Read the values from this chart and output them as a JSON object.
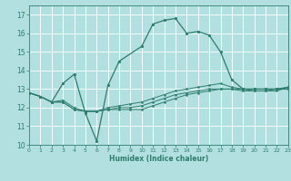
{
  "xlabel": "Humidex (Indice chaleur)",
  "background_color": "#b2dfdf",
  "grid_color": "#ffffff",
  "line_color": "#2e7d6e",
  "xlim": [
    0,
    23
  ],
  "ylim": [
    10,
    17.5
  ],
  "yticks": [
    10,
    11,
    12,
    13,
    14,
    15,
    16,
    17
  ],
  "xticks": [
    0,
    1,
    2,
    3,
    4,
    5,
    6,
    7,
    8,
    9,
    10,
    11,
    12,
    13,
    14,
    15,
    16,
    17,
    18,
    19,
    20,
    21,
    22,
    23
  ],
  "series": [
    {
      "x": [
        0,
        1,
        2,
        3,
        4,
        5,
        6,
        7,
        8,
        10,
        11,
        12,
        13,
        14,
        15,
        16,
        17,
        18,
        19,
        20,
        21,
        22,
        23
      ],
      "y": [
        12.8,
        12.6,
        12.3,
        13.3,
        13.8,
        11.7,
        10.2,
        13.2,
        14.5,
        15.3,
        16.5,
        16.7,
        16.8,
        16.0,
        16.1,
        15.9,
        15.0,
        13.5,
        13.0,
        13.0,
        13.0,
        13.0,
        13.0
      ]
    },
    {
      "x": [
        0,
        1,
        2,
        3,
        4,
        5,
        6,
        7,
        8,
        9,
        10,
        11,
        12,
        13,
        14,
        15,
        16,
        17,
        18,
        19,
        20,
        21,
        22,
        23
      ],
      "y": [
        12.8,
        12.6,
        12.3,
        12.4,
        12.0,
        11.8,
        11.8,
        12.0,
        12.1,
        12.2,
        12.3,
        12.5,
        12.7,
        12.9,
        13.0,
        13.1,
        13.2,
        13.3,
        13.1,
        13.0,
        13.0,
        13.0,
        13.0,
        13.1
      ]
    },
    {
      "x": [
        0,
        1,
        2,
        3,
        4,
        5,
        6,
        7,
        8,
        9,
        10,
        11,
        12,
        13,
        14,
        15,
        16,
        17,
        18,
        19,
        20,
        21,
        22,
        23
      ],
      "y": [
        12.8,
        12.6,
        12.3,
        12.3,
        11.9,
        11.8,
        11.8,
        11.9,
        12.0,
        12.0,
        12.1,
        12.3,
        12.5,
        12.7,
        12.8,
        12.9,
        13.0,
        13.0,
        13.0,
        13.0,
        12.9,
        12.9,
        13.0,
        13.1
      ]
    },
    {
      "x": [
        0,
        1,
        2,
        3,
        4,
        5,
        6,
        7,
        8,
        9,
        10,
        11,
        12,
        13,
        14,
        15,
        16,
        17,
        18,
        19,
        20,
        21,
        22,
        23
      ],
      "y": [
        12.8,
        12.6,
        12.3,
        12.3,
        11.9,
        11.8,
        11.8,
        11.9,
        11.9,
        11.9,
        11.9,
        12.1,
        12.3,
        12.5,
        12.7,
        12.8,
        12.9,
        13.0,
        13.0,
        12.9,
        12.9,
        12.9,
        12.9,
        13.1
      ]
    }
  ]
}
